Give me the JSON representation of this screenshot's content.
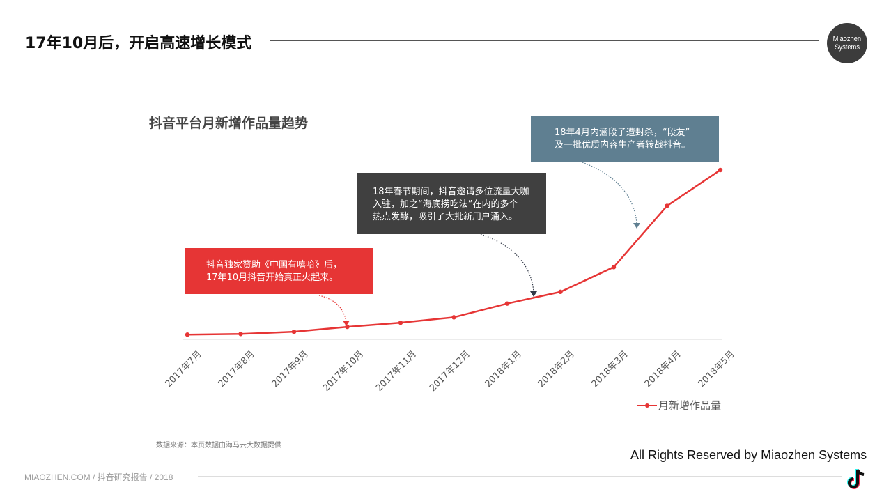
{
  "page": {
    "title": "17年10月后，开启高速增长模式",
    "logo": {
      "line1": "Miaozhen",
      "line2": "Systems"
    },
    "source_note": "数据来源：本页数据由海马云大数据提供",
    "rights": "All Rights Reserved by Miaozhen Systems",
    "footer": "MIAOZHEN.COM / 抖音研究报告 / 2018",
    "colors": {
      "series": "#e63535",
      "callout_red": "#e63535",
      "callout_dark": "#404040",
      "callout_blue": "#5f7f91",
      "axis": "#d9d9d9"
    }
  },
  "callouts": [
    {
      "id": "red",
      "lines": [
        "抖音独家赞助《中国有嘻哈》后，",
        "17年10月抖音开始真正火起来。"
      ],
      "points_to": "2017年10月"
    },
    {
      "id": "dark",
      "lines": [
        "18年春节期间，抖音邀请多位流量大咖",
        "入驻，加之“海底捞吃法”在内的多个",
        "热点发酵，吸引了大批新用户涌入。"
      ],
      "points_to": "2018年2月"
    },
    {
      "id": "blue",
      "lines": [
        "18年4月内涵段子遭封杀，“段友”",
        "及一批优质内容生产者转战抖音。"
      ],
      "points_to": "2018年4月"
    }
  ],
  "chart_data": {
    "type": "line",
    "title": "抖音平台月新增作品量趋势",
    "xlabel": "",
    "ylabel": "",
    "categories": [
      "2017年7月",
      "2017年8月",
      "2017年9月",
      "2017年10月",
      "2017年11月",
      "2017年12月",
      "2018年1月",
      "2018年2月",
      "2018年3月",
      "2018年4月",
      "2018年5月"
    ],
    "series": [
      {
        "name": "月新增作品量",
        "values": [
          1.6,
          2.0,
          3.3,
          6.3,
          8.8,
          12.1,
          20.4,
          27.5,
          42.5,
          79.6,
          101.3
        ]
      }
    ],
    "y_axis_visible": false,
    "value_units": "relative (no y-axis scale shown; estimated from pixel heights, May 2018 ≈ 100)",
    "legend_position": "bottom-right",
    "grid": false
  }
}
